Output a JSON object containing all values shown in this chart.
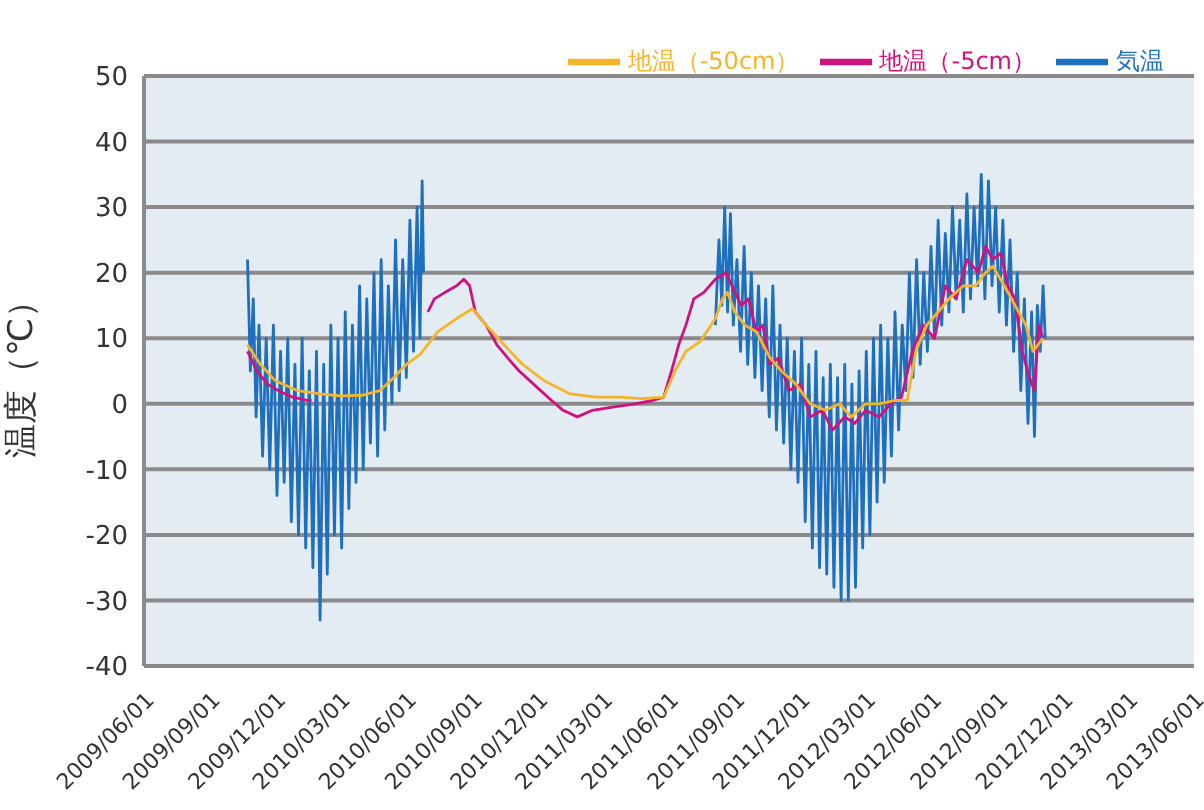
{
  "chart_data": {
    "type": "line",
    "ylabel": "温度（℃）",
    "xlim": [
      "2009-06-01",
      "2013-06-01"
    ],
    "xticks": [
      {
        "value": "2009-06-01",
        "label": "2009/06/01"
      },
      {
        "value": "2009-09-01",
        "label": "2009/09/01"
      },
      {
        "value": "2009-12-01",
        "label": "2009/12/01"
      },
      {
        "value": "2010-03-01",
        "label": "2010/03/01"
      },
      {
        "value": "2010-06-01",
        "label": "2010/06/01"
      },
      {
        "value": "2010-09-01",
        "label": "2010/09/01"
      },
      {
        "value": "2010-12-01",
        "label": "2010/12/01"
      },
      {
        "value": "2011-03-01",
        "label": "2011/03/01"
      },
      {
        "value": "2011-06-01",
        "label": "2011/06/01"
      },
      {
        "value": "2011-09-01",
        "label": "2011/09/01"
      },
      {
        "value": "2011-12-01",
        "label": "2011/12/01"
      },
      {
        "value": "2012-03-01",
        "label": "2012/03/01"
      },
      {
        "value": "2012-06-01",
        "label": "2012/06/01"
      },
      {
        "value": "2012-09-01",
        "label": "2012/09/01"
      },
      {
        "value": "2012-12-01",
        "label": "2012/12/01"
      },
      {
        "value": "2013-03-01",
        "label": "2013/03/01"
      },
      {
        "value": "2013-06-01",
        "label": "2013/06/01"
      }
    ],
    "ylim": [
      -40,
      50
    ],
    "yticks": [
      -40,
      -30,
      -20,
      -10,
      0,
      10,
      20,
      30,
      40,
      50
    ],
    "grid": "y",
    "legend": "top right",
    "marker": "none",
    "line_style": "solid",
    "series": [
      {
        "name": "気温",
        "color": "#1f6fbf",
        "x": [
          "2009-10-23",
          "2009-10-27",
          "2009-10-31",
          "2009-11-04",
          "2009-11-08",
          "2009-11-13",
          "2009-11-18",
          "2009-11-23",
          "2009-11-28",
          "2009-12-03",
          "2009-12-08",
          "2009-12-13",
          "2009-12-18",
          "2009-12-23",
          "2009-12-28",
          "2010-01-02",
          "2010-01-07",
          "2010-01-12",
          "2010-01-17",
          "2010-01-22",
          "2010-01-27",
          "2010-02-01",
          "2010-02-06",
          "2010-02-11",
          "2010-02-16",
          "2010-02-21",
          "2010-02-26",
          "2010-03-03",
          "2010-03-08",
          "2010-03-13",
          "2010-03-18",
          "2010-03-23",
          "2010-03-28",
          "2010-04-02",
          "2010-04-07",
          "2010-04-12",
          "2010-04-17",
          "2010-04-22",
          "2010-04-27",
          "2010-05-02",
          "2010-05-07",
          "2010-05-12",
          "2010-05-17",
          "2010-05-22",
          "2010-05-27",
          "2010-06-01",
          "2010-06-06",
          "2010-06-11",
          "2010-06-16",
          "2010-06-20",
          "2010-06-23",
          "2010-06-25",
          "2010-07-01",
          "2011-08-05",
          "2011-08-10",
          "2011-08-14",
          "2011-08-18",
          "2011-08-22",
          "2011-08-26",
          "2011-08-30",
          "2011-09-04",
          "2011-09-09",
          "2011-09-14",
          "2011-09-19",
          "2011-09-24",
          "2011-09-29",
          "2011-10-04",
          "2011-10-09",
          "2011-10-14",
          "2011-10-19",
          "2011-10-24",
          "2011-10-29",
          "2011-11-03",
          "2011-11-08",
          "2011-11-13",
          "2011-11-18",
          "2011-11-23",
          "2011-11-28",
          "2011-12-03",
          "2011-12-08",
          "2011-12-13",
          "2011-12-18",
          "2011-12-23",
          "2011-12-28",
          "2012-01-02",
          "2012-01-07",
          "2012-01-12",
          "2012-01-17",
          "2012-01-22",
          "2012-01-27",
          "2012-02-01",
          "2012-02-06",
          "2012-02-11",
          "2012-02-16",
          "2012-02-21",
          "2012-02-26",
          "2012-03-02",
          "2012-03-07",
          "2012-03-12",
          "2012-03-17",
          "2012-03-22",
          "2012-03-27",
          "2012-04-01",
          "2012-04-06",
          "2012-04-11",
          "2012-04-16",
          "2012-04-21",
          "2012-04-26",
          "2012-05-01",
          "2012-05-06",
          "2012-05-11",
          "2012-05-16",
          "2012-05-21",
          "2012-05-26",
          "2012-05-31",
          "2012-06-05",
          "2012-06-10",
          "2012-06-15",
          "2012-06-20",
          "2012-06-25",
          "2012-06-30",
          "2012-07-05",
          "2012-07-10",
          "2012-07-15",
          "2012-07-20",
          "2012-07-25",
          "2012-07-30",
          "2012-08-04",
          "2012-08-09",
          "2012-08-14",
          "2012-08-19",
          "2012-08-24",
          "2012-08-29",
          "2012-09-03",
          "2012-09-08",
          "2012-09-13",
          "2012-09-18",
          "2012-09-23",
          "2012-09-28",
          "2012-10-03",
          "2012-10-08",
          "2012-10-13",
          "2012-10-18",
          "2012-10-22",
          "2012-10-26",
          "2012-10-30",
          "2012-11-03",
          "2012-11-06"
        ],
        "values": [
          22,
          5,
          16,
          -2,
          12,
          -8,
          10,
          -10,
          12,
          -14,
          8,
          -12,
          10,
          -18,
          6,
          -20,
          10,
          -22,
          5,
          -25,
          8,
          -33,
          6,
          -26,
          12,
          -20,
          10,
          -22,
          14,
          -16,
          12,
          -12,
          18,
          -10,
          16,
          -6,
          20,
          -8,
          22,
          -4,
          18,
          0,
          25,
          2,
          22,
          4,
          28,
          8,
          30,
          10,
          34,
          20,
          null,
          12,
          25,
          15,
          30,
          14,
          29,
          12,
          22,
          8,
          24,
          6,
          20,
          4,
          18,
          2,
          16,
          -2,
          18,
          -4,
          12,
          -6,
          10,
          -10,
          8,
          -12,
          10,
          -18,
          6,
          -22,
          8,
          -25,
          4,
          -26,
          6,
          -28,
          4,
          -30,
          6,
          -30,
          3,
          -28,
          5,
          -22,
          8,
          -20,
          10,
          -15,
          12,
          -12,
          10,
          -8,
          14,
          -4,
          12,
          2,
          20,
          4,
          22,
          6,
          20,
          8,
          24,
          10,
          28,
          12,
          26,
          14,
          30,
          16,
          28,
          14,
          32,
          16,
          30,
          18,
          35,
          16,
          34,
          18,
          30,
          14,
          28,
          12,
          25,
          8,
          20,
          2,
          16,
          -3,
          14,
          -5,
          15,
          8,
          18,
          10
        ]
      },
      {
        "name": "地温（-5cm）",
        "color": "#d0127f",
        "x": [
          "2009-10-23",
          "2009-11-05",
          "2009-11-20",
          "2009-12-05",
          "2009-12-25",
          "2010-01-15",
          "2010-01-20",
          "2010-04-01",
          "2010-07-01",
          "2010-07-10",
          "2010-07-25",
          "2010-08-10",
          "2010-08-20",
          "2010-08-28",
          "2010-09-05",
          "2010-09-20",
          "2010-10-05",
          "2010-10-20",
          "2010-11-05",
          "2010-11-25",
          "2010-12-15",
          "2011-01-05",
          "2011-01-25",
          "2011-02-15",
          "2011-03-15",
          "2011-04-15",
          "2011-05-10",
          "2011-05-25",
          "2011-06-05",
          "2011-06-15",
          "2011-06-25",
          "2011-07-06",
          "2011-07-20",
          "2011-08-05",
          "2011-08-20",
          "2011-08-28",
          "2011-09-10",
          "2011-09-20",
          "2011-10-01",
          "2011-10-10",
          "2011-10-20",
          "2011-11-01",
          "2011-11-15",
          "2011-12-01",
          "2011-12-15",
          "2012-01-01",
          "2012-01-15",
          "2012-02-01",
          "2012-02-15",
          "2012-03-01",
          "2012-03-20",
          "2012-04-05",
          "2012-04-20",
          "2012-05-05",
          "2012-05-20",
          "2012-06-05",
          "2012-06-20",
          "2012-07-05",
          "2012-07-20",
          "2012-08-05",
          "2012-08-15",
          "2012-08-25",
          "2012-09-05",
          "2012-09-15",
          "2012-09-25",
          "2012-10-05",
          "2012-10-15",
          "2012-10-22",
          "2012-10-28",
          "2012-11-03"
        ],
        "values": [
          8,
          5,
          3,
          2,
          1,
          0.5,
          0.5,
          null,
          14,
          16,
          17,
          18,
          19,
          18,
          14,
          12,
          9,
          7,
          5,
          3,
          1,
          -1,
          -2,
          -1,
          -0.5,
          0,
          0.5,
          1,
          5,
          9,
          12,
          16,
          17,
          19,
          20,
          18,
          15,
          16,
          11,
          12,
          6,
          7,
          2,
          3,
          -2,
          -1,
          -4,
          -2,
          -3,
          -1,
          -2,
          0,
          1,
          8,
          12,
          10,
          18,
          16,
          22,
          20,
          24,
          22,
          23,
          18,
          16,
          8,
          4,
          2,
          12,
          10
        ]
      },
      {
        "name": "地温（-50cm）",
        "color": "#f5b52a",
        "x": [
          "2009-10-23",
          "2009-11-10",
          "2009-12-01",
          "2010-01-01",
          "2010-02-01",
          "2010-03-01",
          "2010-04-01",
          "2010-04-25",
          "2010-05-15",
          "2010-06-01",
          "2010-06-20",
          "2010-07-15",
          "2010-08-10",
          "2010-09-01",
          "2010-09-20",
          "2010-10-15",
          "2010-11-10",
          "2010-12-10",
          "2011-01-15",
          "2011-02-20",
          "2011-03-25",
          "2011-04-25",
          "2011-05-25",
          "2011-06-10",
          "2011-06-25",
          "2011-07-15",
          "2011-08-05",
          "2011-08-15",
          "2011-08-22",
          "2011-09-01",
          "2011-09-15",
          "2011-10-01",
          "2011-10-20",
          "2011-11-05",
          "2011-11-25",
          "2011-12-15",
          "2012-01-05",
          "2012-01-25",
          "2012-02-10",
          "2012-03-01",
          "2012-03-20",
          "2012-04-10",
          "2012-04-28",
          "2012-05-10",
          "2012-05-25",
          "2012-06-10",
          "2012-06-25",
          "2012-07-15",
          "2012-08-01",
          "2012-08-15",
          "2012-08-25",
          "2012-09-10",
          "2012-09-25",
          "2012-10-10",
          "2012-10-20",
          "2012-11-03"
        ],
        "values": [
          9,
          6,
          3.5,
          2,
          1.5,
          1.2,
          1.3,
          2,
          4,
          6,
          7.5,
          11,
          13,
          14.5,
          12,
          9,
          6,
          3.5,
          1.5,
          1,
          1,
          0.8,
          1,
          5,
          8,
          9.5,
          13,
          16,
          17,
          14,
          12,
          11,
          7,
          5,
          3,
          0,
          -1,
          0,
          -2,
          0,
          0,
          0.5,
          0.5,
          8,
          12,
          14,
          16,
          18,
          18,
          20,
          21,
          18,
          15,
          12,
          8,
          10
        ]
      }
    ]
  }
}
